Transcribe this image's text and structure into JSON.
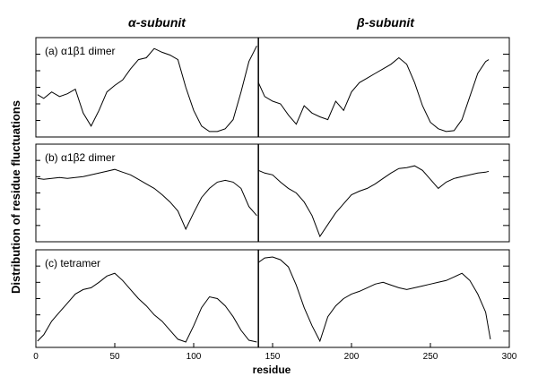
{
  "chart_data": {
    "type": "line",
    "subunit_labels": {
      "alpha": "α-subunit",
      "beta": "β-subunit"
    },
    "xlabel": "residue",
    "ylabel": "Distribution of residue fluctuations",
    "xlim": [
      0,
      300
    ],
    "xticks": [
      "0",
      "50",
      "100",
      "150",
      "200",
      "250",
      "300"
    ],
    "divider_residue": 141,
    "panels": [
      {
        "label": "(a) α1β1 dimer",
        "series": [
          {
            "segment": "alpha",
            "x": [
              1,
              5,
              10,
              15,
              20,
              25,
              30,
              35,
              40,
              45,
              50,
              55,
              60,
              65,
              70,
              75,
              80,
              85,
              90,
              95,
              100,
              105,
              110,
              115,
              120,
              125,
              130,
              135,
              140
            ],
            "y": [
              0.42,
              0.38,
              0.45,
              0.4,
              0.43,
              0.48,
              0.22,
              0.08,
              0.25,
              0.45,
              0.52,
              0.58,
              0.7,
              0.8,
              0.82,
              0.92,
              0.88,
              0.85,
              0.8,
              0.5,
              0.25,
              0.08,
              0.02,
              0.02,
              0.05,
              0.15,
              0.45,
              0.78,
              0.95
            ]
          },
          {
            "segment": "beta",
            "x": [
              141,
              145,
              150,
              155,
              160,
              165,
              170,
              175,
              180,
              185,
              190,
              195,
              200,
              205,
              210,
              215,
              220,
              225,
              230,
              235,
              240,
              245,
              250,
              255,
              260,
              265,
              270,
              275,
              280,
              285,
              287
            ],
            "y": [
              0.55,
              0.4,
              0.35,
              0.32,
              0.2,
              0.1,
              0.3,
              0.22,
              0.18,
              0.15,
              0.35,
              0.25,
              0.45,
              0.55,
              0.6,
              0.65,
              0.7,
              0.75,
              0.82,
              0.75,
              0.55,
              0.3,
              0.12,
              0.05,
              0.02,
              0.03,
              0.15,
              0.4,
              0.65,
              0.78,
              0.8
            ]
          }
        ]
      },
      {
        "label": "(b) α1β2 dimer",
        "series": [
          {
            "segment": "alpha",
            "x": [
              1,
              5,
              10,
              15,
              20,
              25,
              30,
              35,
              40,
              45,
              50,
              55,
              60,
              65,
              70,
              75,
              80,
              85,
              90,
              95,
              100,
              105,
              110,
              115,
              120,
              125,
              130,
              135,
              140
            ],
            "y": [
              0.66,
              0.65,
              0.66,
              0.67,
              0.66,
              0.67,
              0.68,
              0.7,
              0.72,
              0.74,
              0.76,
              0.73,
              0.7,
              0.65,
              0.6,
              0.55,
              0.48,
              0.4,
              0.3,
              0.1,
              0.28,
              0.45,
              0.55,
              0.62,
              0.64,
              0.62,
              0.55,
              0.35,
              0.25
            ]
          },
          {
            "segment": "beta",
            "x": [
              141,
              145,
              150,
              155,
              160,
              165,
              170,
              175,
              180,
              185,
              190,
              195,
              200,
              205,
              210,
              215,
              220,
              225,
              230,
              235,
              240,
              245,
              250,
              255,
              260,
              265,
              270,
              275,
              280,
              285,
              287
            ],
            "y": [
              0.75,
              0.72,
              0.7,
              0.62,
              0.55,
              0.5,
              0.4,
              0.25,
              0.02,
              0.15,
              0.28,
              0.38,
              0.48,
              0.52,
              0.55,
              0.6,
              0.66,
              0.72,
              0.77,
              0.78,
              0.8,
              0.75,
              0.65,
              0.55,
              0.62,
              0.66,
              0.68,
              0.7,
              0.72,
              0.73,
              0.74
            ]
          }
        ]
      },
      {
        "label": "(c) tetramer",
        "series": [
          {
            "segment": "alpha",
            "x": [
              1,
              5,
              10,
              15,
              20,
              25,
              30,
              35,
              40,
              45,
              50,
              55,
              60,
              65,
              70,
              75,
              80,
              85,
              90,
              95,
              100,
              105,
              110,
              115,
              120,
              125,
              130,
              135,
              140
            ],
            "y": [
              0.03,
              0.1,
              0.25,
              0.35,
              0.45,
              0.55,
              0.6,
              0.62,
              0.68,
              0.75,
              0.78,
              0.7,
              0.6,
              0.5,
              0.42,
              0.32,
              0.25,
              0.15,
              0.05,
              0.02,
              0.2,
              0.4,
              0.52,
              0.5,
              0.42,
              0.3,
              0.15,
              0.04,
              0.02
            ]
          },
          {
            "segment": "beta",
            "x": [
              141,
              145,
              150,
              155,
              160,
              165,
              170,
              175,
              180,
              185,
              190,
              195,
              200,
              205,
              210,
              215,
              220,
              225,
              230,
              235,
              240,
              245,
              250,
              255,
              260,
              265,
              270,
              275,
              280,
              285,
              288
            ],
            "y": [
              0.9,
              0.95,
              0.96,
              0.93,
              0.85,
              0.65,
              0.4,
              0.2,
              0.03,
              0.3,
              0.42,
              0.5,
              0.55,
              0.58,
              0.62,
              0.66,
              0.68,
              0.65,
              0.62,
              0.6,
              0.62,
              0.64,
              0.66,
              0.68,
              0.7,
              0.74,
              0.78,
              0.7,
              0.55,
              0.35,
              0.05
            ]
          }
        ]
      }
    ]
  }
}
